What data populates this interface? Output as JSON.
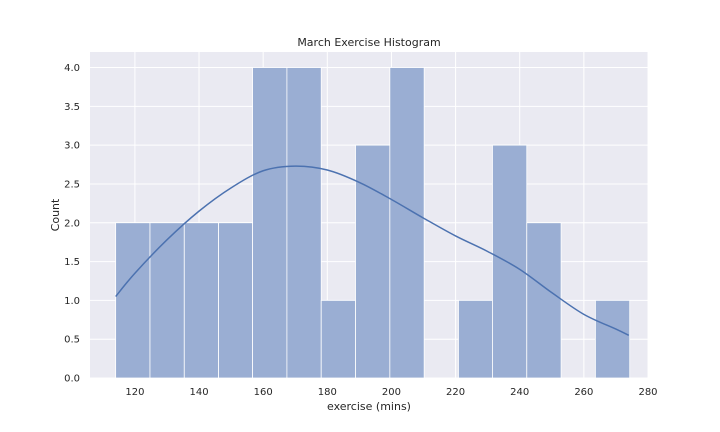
{
  "chart_data": {
    "type": "bar",
    "subtype": "histogram-with-kde",
    "title": "March Exercise Histogram",
    "xlabel": "exercise (mins)",
    "ylabel": "Count",
    "xlim": [
      106,
      280
    ],
    "ylim": [
      0,
      4.2
    ],
    "xticks": [
      120,
      140,
      160,
      180,
      200,
      220,
      240,
      260,
      280
    ],
    "yticks": [
      0.0,
      0.5,
      1.0,
      1.5,
      2.0,
      2.5,
      3.0,
      3.5,
      4.0
    ],
    "bins": [
      {
        "x0": 114.0,
        "x1": 124.7,
        "count": 2
      },
      {
        "x0": 124.7,
        "x1": 135.4,
        "count": 2
      },
      {
        "x0": 135.4,
        "x1": 146.1,
        "count": 2
      },
      {
        "x0": 146.1,
        "x1": 156.7,
        "count": 2
      },
      {
        "x0": 156.7,
        "x1": 167.4,
        "count": 4
      },
      {
        "x0": 167.4,
        "x1": 178.1,
        "count": 4
      },
      {
        "x0": 178.1,
        "x1": 188.8,
        "count": 1
      },
      {
        "x0": 188.8,
        "x1": 199.5,
        "count": 3
      },
      {
        "x0": 199.5,
        "x1": 210.2,
        "count": 4
      },
      {
        "x0": 210.2,
        "x1": 220.9,
        "count": 0
      },
      {
        "x0": 220.9,
        "x1": 231.5,
        "count": 1
      },
      {
        "x0": 231.5,
        "x1": 242.2,
        "count": 3
      },
      {
        "x0": 242.2,
        "x1": 252.9,
        "count": 2
      },
      {
        "x0": 252.9,
        "x1": 263.6,
        "count": 0
      },
      {
        "x0": 263.6,
        "x1": 274.3,
        "count": 1
      }
    ],
    "kde": {
      "x": [
        114,
        120,
        130,
        140,
        150,
        160,
        170,
        180,
        190,
        200,
        210,
        220,
        230,
        240,
        250,
        260,
        270,
        274
      ],
      "y": [
        1.05,
        1.35,
        1.78,
        2.15,
        2.45,
        2.67,
        2.73,
        2.68,
        2.52,
        2.3,
        2.06,
        1.83,
        1.63,
        1.4,
        1.1,
        0.82,
        0.63,
        0.55
      ]
    },
    "grid": true,
    "colors": {
      "bar_fill": "#9aaed3",
      "bar_edge": "#ffffff",
      "kde_line": "#4c72b0",
      "plot_background": "#eaeaf2",
      "grid": "#ffffff"
    }
  }
}
